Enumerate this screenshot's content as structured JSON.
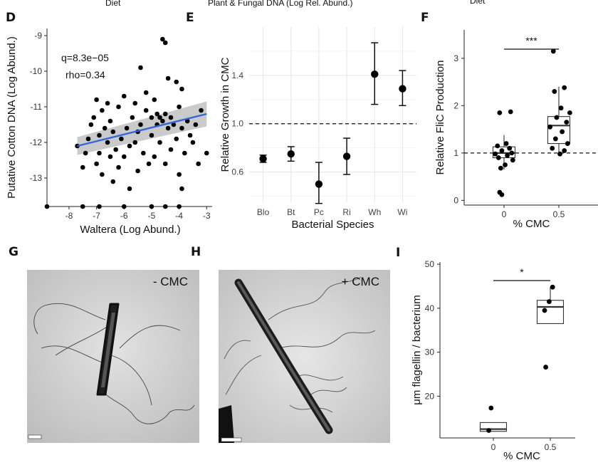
{
  "cropped_titles": {
    "diet_left": "Diet",
    "plant_fungal": "Plant & Fungal DNA (Log Rel. Abund.)",
    "diet_right": "Diet"
  },
  "chart_data": [
    {
      "panel": "D",
      "type": "scatter",
      "xlabel": "Waltera (Log Abund.)",
      "ylabel": "Putative Cotton DNA (Log Abund.)",
      "xlim": [
        -8.8,
        -2.8
      ],
      "ylim": [
        -13.8,
        -8.8
      ],
      "xticks": [
        "-8",
        "-7",
        "-6",
        "-5",
        "-4",
        "-3"
      ],
      "xtick_values": [
        -8,
        -7,
        -6,
        -5,
        -4,
        -3
      ],
      "yticks": [
        "-9",
        "-10",
        "-11",
        "-12",
        "-13"
      ],
      "ytick_values": [
        -9,
        -10,
        -11,
        -12,
        -13
      ],
      "annotations": [
        "q=8.3e−05",
        "rho=0.34"
      ],
      "regression": {
        "x": [
          -7.7,
          -3.0
        ],
        "y": [
          -12.1,
          -11.2
        ]
      },
      "points": [
        [
          -8.8,
          -13.8
        ],
        [
          -7.7,
          -12.1
        ],
        [
          -7.5,
          -12.7
        ],
        [
          -7.4,
          -12.3
        ],
        [
          -7.3,
          -11.9
        ],
        [
          -7.2,
          -11.5
        ],
        [
          -7.1,
          -11.3
        ],
        [
          -7.0,
          -10.8
        ],
        [
          -7.0,
          -12.6
        ],
        [
          -6.9,
          -11.8
        ],
        [
          -6.9,
          -12.3
        ],
        [
          -6.8,
          -11.1
        ],
        [
          -6.8,
          -12.9
        ],
        [
          -6.7,
          -11.6
        ],
        [
          -6.6,
          -12.0
        ],
        [
          -6.6,
          -10.9
        ],
        [
          -6.5,
          -12.4
        ],
        [
          -6.5,
          -11.4
        ],
        [
          -6.4,
          -13.1
        ],
        [
          -6.4,
          -11.7
        ],
        [
          -6.3,
          -12.2
        ],
        [
          -6.2,
          -11.0
        ],
        [
          -6.2,
          -12.7
        ],
        [
          -6.1,
          -11.9
        ],
        [
          -6.0,
          -12.4
        ],
        [
          -6.0,
          -10.7
        ],
        [
          -5.9,
          -11.6
        ],
        [
          -5.8,
          -12.1
        ],
        [
          -5.8,
          -13.3
        ],
        [
          -5.7,
          -11.3
        ],
        [
          -5.6,
          -12.0
        ],
        [
          -5.6,
          -10.9
        ],
        [
          -5.5,
          -11.7
        ],
        [
          -5.5,
          -12.8
        ],
        [
          -5.4,
          -9.9
        ],
        [
          -5.4,
          -11.5
        ],
        [
          -5.3,
          -12.3
        ],
        [
          -5.2,
          -11.1
        ],
        [
          -5.2,
          -10.6
        ],
        [
          -5.1,
          -12.6
        ],
        [
          -5.0,
          -11.8
        ],
        [
          -5.0,
          -11.3
        ],
        [
          -4.9,
          -12.4
        ],
        [
          -4.9,
          -10.8
        ],
        [
          -4.8,
          -11.5
        ],
        [
          -4.8,
          -11.2
        ],
        [
          -4.7,
          -11.3
        ],
        [
          -4.7,
          -12.0
        ],
        [
          -4.6,
          -11.4
        ],
        [
          -4.6,
          -9.1
        ],
        [
          -4.5,
          -9.2
        ],
        [
          -4.5,
          -11.2
        ],
        [
          -4.5,
          -12.6
        ],
        [
          -4.4,
          -10.2
        ],
        [
          -4.4,
          -11.6
        ],
        [
          -4.3,
          -11.3
        ],
        [
          -4.3,
          -12.2
        ],
        [
          -4.2,
          -11.5
        ],
        [
          -4.1,
          -10.3
        ],
        [
          -4.1,
          -11.9
        ],
        [
          -4.0,
          -11.0
        ],
        [
          -4.0,
          -12.9
        ],
        [
          -3.9,
          -10.5
        ],
        [
          -3.9,
          -11.6
        ],
        [
          -3.8,
          -12.3
        ],
        [
          -3.7,
          -11.4
        ],
        [
          -3.6,
          -11.8
        ],
        [
          -3.5,
          -12.0
        ],
        [
          -3.4,
          -11.5
        ],
        [
          -3.3,
          -12.6
        ],
        [
          -3.2,
          -11.1
        ],
        [
          -3.0,
          -12.3
        ],
        [
          -7.5,
          -13.8
        ],
        [
          -6.9,
          -13.8
        ],
        [
          -6.0,
          -13.8
        ],
        [
          -5.0,
          -13.8
        ],
        [
          -4.5,
          -13.8
        ],
        [
          -3.9,
          -13.3
        ],
        [
          -4.0,
          -13.8
        ]
      ]
    },
    {
      "panel": "E",
      "type": "scatter",
      "xlabel": "Bacterial Species",
      "ylabel": "Relative Growth in CMC",
      "categories": [
        "Blo",
        "Bt",
        "Pc",
        "Ri",
        "Wh",
        "Wi"
      ],
      "values": [
        0.71,
        0.75,
        0.5,
        0.73,
        1.41,
        1.29
      ],
      "errors_low": [
        0.68,
        0.69,
        0.34,
        0.58,
        1.16,
        1.15
      ],
      "errors_high": [
        0.74,
        0.81,
        0.68,
        0.88,
        1.67,
        1.44
      ],
      "ylim": [
        0.35,
        1.8
      ],
      "yticks": [
        "0.6",
        "1.0",
        "1.4"
      ],
      "ytick_values": [
        0.6,
        1.0,
        1.4
      ],
      "reference_line": 1.0
    },
    {
      "panel": "F",
      "type": "box",
      "xlabel": "% CMC",
      "ylabel": "Relative FliC Production",
      "categories": [
        "0",
        "0.5"
      ],
      "ylim": [
        -0.1,
        3.6
      ],
      "yticks": [
        "0",
        "1",
        "2",
        "3"
      ],
      "ytick_values": [
        0,
        1,
        2,
        3
      ],
      "significance": "***",
      "reference_line": 1.0,
      "boxes": [
        {
          "q1": 0.9,
          "median": 1.0,
          "q3": 1.13,
          "whisker_low": 0.65,
          "whisker_high": 1.38
        },
        {
          "q1": 1.2,
          "median": 1.58,
          "q3": 1.77,
          "whisker_low": 1.0,
          "whisker_high": 2.4
        }
      ],
      "points": [
        [
          0.06,
          1.87
        ],
        [
          -0.04,
          1.85
        ],
        [
          0.02,
          1.2
        ],
        [
          -0.06,
          1.15
        ],
        [
          0.05,
          1.1
        ],
        [
          -0.02,
          1.05
        ],
        [
          0.07,
          1.0
        ],
        [
          -0.08,
          0.98
        ],
        [
          0.03,
          0.95
        ],
        [
          -0.05,
          0.9
        ],
        [
          0.08,
          0.85
        ],
        [
          0.01,
          0.75
        ],
        [
          -0.03,
          0.68
        ],
        [
          -0.04,
          0.17
        ],
        [
          -0.02,
          0.12
        ],
        [
          0.45,
          3.15
        ],
        [
          0.55,
          2.38
        ],
        [
          0.46,
          2.3
        ],
        [
          0.52,
          1.95
        ],
        [
          0.6,
          1.85
        ],
        [
          0.48,
          1.75
        ],
        [
          0.57,
          1.65
        ],
        [
          0.42,
          1.55
        ],
        [
          0.53,
          1.45
        ],
        [
          0.47,
          1.3
        ],
        [
          0.58,
          1.2
        ],
        [
          0.44,
          1.1
        ],
        [
          0.55,
          1.05
        ],
        [
          0.51,
          0.98
        ]
      ]
    },
    {
      "panel": "I",
      "type": "box",
      "xlabel": "% CMC",
      "ylabel": "μm flagellin / bacterium",
      "categories": [
        "0",
        "0.5"
      ],
      "ylim": [
        10.5,
        50.5
      ],
      "yticks": [
        "20",
        "30",
        "40",
        "50"
      ],
      "ytick_values": [
        20,
        30,
        40,
        50
      ],
      "significance": "*",
      "boxes": [
        {
          "q1": 12.0,
          "median": 12.5,
          "q3": 14.0,
          "whisker_low": 12.0,
          "whisker_high": 14.0
        },
        {
          "q1": 36.5,
          "median": 40.3,
          "q3": 41.8,
          "whisker_low": 36.5,
          "whisker_high": 44.8
        }
      ],
      "points": [
        [
          -0.02,
          17.3
        ],
        [
          -0.04,
          12.2
        ],
        [
          0.52,
          44.8
        ],
        [
          0.49,
          41.5
        ],
        [
          0.45,
          39.5
        ],
        [
          0.46,
          26.6
        ]
      ]
    }
  ],
  "panel_labels": {
    "d": "D",
    "e": "E",
    "f": "F",
    "g": "G",
    "h": "H",
    "i": "I"
  },
  "micrographs": {
    "g_label": "- CMC",
    "h_label": "+ CMC"
  }
}
